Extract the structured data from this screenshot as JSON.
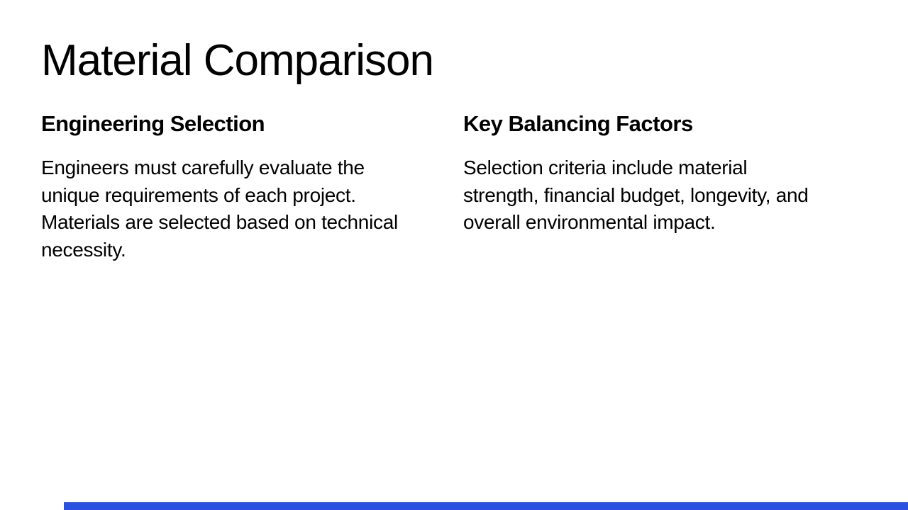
{
  "slide": {
    "title": "Material Comparison",
    "columns": [
      {
        "heading": "Engineering Selection",
        "body": "Engineers must carefully evaluate the unique requirements of each project. Materials are selected based on technical necessity."
      },
      {
        "heading": "Key Balancing Factors",
        "body": "Selection criteria include material strength, financial budget, longevity, and overall environmental impact."
      }
    ],
    "accent_bar_color": "#2a52e0",
    "background_color": "#ffffff",
    "text_color": "#000000"
  }
}
